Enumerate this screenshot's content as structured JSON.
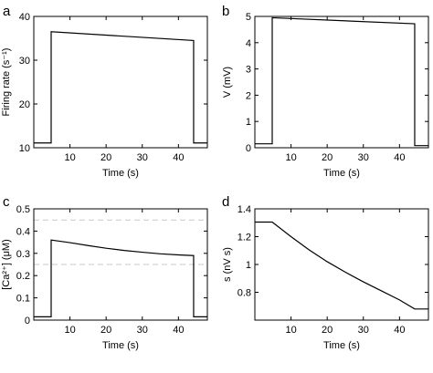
{
  "chart_data": [
    {
      "panel": "a",
      "type": "line",
      "xlabel": "Time (s)",
      "ylabel": "Firing rate (s⁻¹)",
      "xlim": [
        0,
        48
      ],
      "ylim": [
        10,
        40
      ],
      "xticks": [
        10,
        20,
        30,
        40
      ],
      "yticks": [
        10,
        20,
        30,
        40
      ],
      "series": [
        {
          "x": [
            0,
            4.8,
            4.8,
            44.2,
            44.2,
            48
          ],
          "y": [
            11.1,
            11.1,
            36.5,
            34.5,
            11.1,
            11.1
          ]
        }
      ],
      "reference_lines": []
    },
    {
      "panel": "b",
      "type": "line",
      "xlabel": "Time (s)",
      "ylabel": "V (mV)",
      "xlim": [
        0,
        48
      ],
      "ylim": [
        0,
        5
      ],
      "xticks": [
        10,
        20,
        30,
        40
      ],
      "yticks": [
        0,
        1,
        2,
        3,
        4,
        5
      ],
      "series": [
        {
          "x": [
            0,
            4.8,
            4.8,
            44.2,
            44.2,
            48
          ],
          "y": [
            0.15,
            0.15,
            4.95,
            4.72,
            0.08,
            0.08
          ]
        }
      ],
      "reference_lines": []
    },
    {
      "panel": "c",
      "type": "line",
      "xlabel": "Time (s)",
      "ylabel": "[Ca²⁺] (μM)",
      "xlim": [
        0,
        48
      ],
      "ylim": [
        0,
        0.5
      ],
      "xticks": [
        10,
        20,
        30,
        40
      ],
      "yticks": [
        0,
        0.1,
        0.2,
        0.3,
        0.4,
        0.5
      ],
      "series": [
        {
          "x": [
            0,
            4.8,
            4.8,
            10,
            15,
            20,
            25,
            30,
            35,
            40,
            44.2,
            44.2,
            48
          ],
          "y": [
            0.015,
            0.015,
            0.36,
            0.348,
            0.335,
            0.323,
            0.313,
            0.305,
            0.298,
            0.293,
            0.29,
            0.015,
            0.015
          ]
        }
      ],
      "reference_lines": [
        0.45,
        0.25
      ]
    },
    {
      "panel": "d",
      "type": "line",
      "xlabel": "Time (s)",
      "ylabel": "s (nV s)",
      "xlim": [
        0,
        48
      ],
      "ylim": [
        0.6,
        1.4
      ],
      "xticks": [
        10,
        20,
        30,
        40
      ],
      "yticks": [
        0.8,
        1,
        1.2,
        1.4
      ],
      "series": [
        {
          "x": [
            0,
            4.8,
            10,
            15,
            20,
            25,
            30,
            35,
            40,
            44.2,
            48
          ],
          "y": [
            1.305,
            1.305,
            1.2,
            1.105,
            1.02,
            0.945,
            0.875,
            0.81,
            0.745,
            0.68,
            0.68
          ]
        }
      ],
      "reference_lines": []
    }
  ]
}
